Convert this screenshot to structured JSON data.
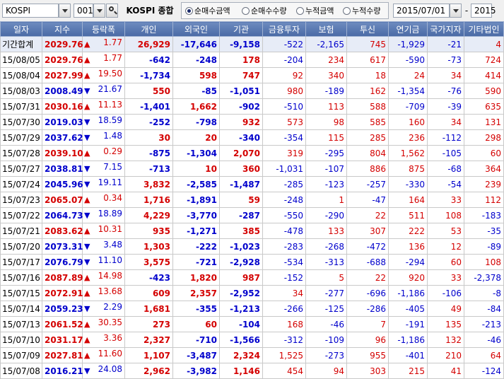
{
  "toolbar": {
    "market": "KOSPI",
    "code": "001",
    "title": "KOSPI 종합",
    "radios": [
      {
        "label": "순매수금액",
        "selected": true
      },
      {
        "label": "순매수수량",
        "selected": false
      },
      {
        "label": "누적금액",
        "selected": false
      },
      {
        "label": "누적수량",
        "selected": false
      }
    ],
    "date_from": "2015/07/01",
    "separator": "-",
    "date_to": "2015"
  },
  "columns": [
    "일자",
    "지수",
    "등락폭",
    "개인",
    "외국인",
    "기관",
    "금융투자",
    "보험",
    "투신",
    "연기금",
    "국가지자",
    "기타법인"
  ],
  "colors": {
    "up": "#d40000",
    "down": "#0000cc",
    "header": "#5a78b2"
  },
  "rows": [
    {
      "date": "기간합계",
      "index": "2029.76",
      "dir": "up",
      "change": "1.77",
      "individual": "26,929",
      "foreign": "-17,646",
      "institution": "-9,158",
      "financial": "-522",
      "insurance": "-2,165",
      "trust": "745",
      "pension": "-1,929",
      "government": "-21",
      "other": "4"
    },
    {
      "date": "15/08/05",
      "index": "2029.76",
      "dir": "up",
      "change": "1.77",
      "individual": "-642",
      "foreign": "-248",
      "institution": "178",
      "financial": "-204",
      "insurance": "234",
      "trust": "617",
      "pension": "-590",
      "government": "-73",
      "other": "724"
    },
    {
      "date": "15/08/04",
      "index": "2027.99",
      "dir": "up",
      "change": "19.50",
      "individual": "-1,734",
      "foreign": "598",
      "institution": "747",
      "financial": "92",
      "insurance": "340",
      "trust": "18",
      "pension": "24",
      "government": "34",
      "other": "414"
    },
    {
      "date": "15/08/03",
      "index": "2008.49",
      "dir": "down",
      "change": "21.67",
      "individual": "550",
      "foreign": "-85",
      "institution": "-1,051",
      "financial": "980",
      "insurance": "-189",
      "trust": "162",
      "pension": "-1,354",
      "government": "-76",
      "other": "590"
    },
    {
      "date": "15/07/31",
      "index": "2030.16",
      "dir": "up",
      "change": "11.13",
      "individual": "-1,401",
      "foreign": "1,662",
      "institution": "-902",
      "financial": "-510",
      "insurance": "113",
      "trust": "588",
      "pension": "-709",
      "government": "-39",
      "other": "635"
    },
    {
      "date": "15/07/30",
      "index": "2019.03",
      "dir": "down",
      "change": "18.59",
      "individual": "-252",
      "foreign": "-798",
      "institution": "932",
      "financial": "573",
      "insurance": "98",
      "trust": "585",
      "pension": "160",
      "government": "34",
      "other": "131"
    },
    {
      "date": "15/07/29",
      "index": "2037.62",
      "dir": "down",
      "change": "1.48",
      "individual": "30",
      "foreign": "20",
      "institution": "-340",
      "financial": "-354",
      "insurance": "115",
      "trust": "285",
      "pension": "236",
      "government": "-112",
      "other": "298"
    },
    {
      "date": "15/07/28",
      "index": "2039.10",
      "dir": "up",
      "change": "0.29",
      "individual": "-875",
      "foreign": "-1,304",
      "institution": "2,070",
      "financial": "319",
      "insurance": "-295",
      "trust": "804",
      "pension": "1,562",
      "government": "-105",
      "other": "60"
    },
    {
      "date": "15/07/27",
      "index": "2038.81",
      "dir": "down",
      "change": "7.15",
      "individual": "-713",
      "foreign": "10",
      "institution": "360",
      "financial": "-1,031",
      "insurance": "-107",
      "trust": "886",
      "pension": "875",
      "government": "-68",
      "other": "364"
    },
    {
      "date": "15/07/24",
      "index": "2045.96",
      "dir": "down",
      "change": "19.11",
      "individual": "3,832",
      "foreign": "-2,585",
      "institution": "-1,487",
      "financial": "-285",
      "insurance": "-123",
      "trust": "-257",
      "pension": "-330",
      "government": "-54",
      "other": "239"
    },
    {
      "date": "15/07/23",
      "index": "2065.07",
      "dir": "up",
      "change": "0.34",
      "individual": "1,716",
      "foreign": "-1,891",
      "institution": "59",
      "financial": "-248",
      "insurance": "1",
      "trust": "-47",
      "pension": "164",
      "government": "33",
      "other": "112"
    },
    {
      "date": "15/07/22",
      "index": "2064.73",
      "dir": "down",
      "change": "18.89",
      "individual": "4,229",
      "foreign": "-3,770",
      "institution": "-287",
      "financial": "-550",
      "insurance": "-290",
      "trust": "22",
      "pension": "511",
      "government": "108",
      "other": "-183"
    },
    {
      "date": "15/07/21",
      "index": "2083.62",
      "dir": "up",
      "change": "10.31",
      "individual": "935",
      "foreign": "-1,271",
      "institution": "385",
      "financial": "-478",
      "insurance": "133",
      "trust": "307",
      "pension": "222",
      "government": "53",
      "other": "-35"
    },
    {
      "date": "15/07/20",
      "index": "2073.31",
      "dir": "down",
      "change": "3.48",
      "individual": "1,303",
      "foreign": "-222",
      "institution": "-1,023",
      "financial": "-283",
      "insurance": "-268",
      "trust": "-472",
      "pension": "136",
      "government": "12",
      "other": "-89"
    },
    {
      "date": "15/07/17",
      "index": "2076.79",
      "dir": "down",
      "change": "11.10",
      "individual": "3,575",
      "foreign": "-721",
      "institution": "-2,928",
      "financial": "-534",
      "insurance": "-313",
      "trust": "-688",
      "pension": "-294",
      "government": "60",
      "other": "108"
    },
    {
      "date": "15/07/16",
      "index": "2087.89",
      "dir": "up",
      "change": "14.98",
      "individual": "-423",
      "foreign": "1,820",
      "institution": "987",
      "financial": "-152",
      "insurance": "5",
      "trust": "22",
      "pension": "920",
      "government": "33",
      "other": "-2,378"
    },
    {
      "date": "15/07/15",
      "index": "2072.91",
      "dir": "up",
      "change": "13.68",
      "individual": "609",
      "foreign": "2,357",
      "institution": "-2,952",
      "financial": "34",
      "insurance": "-277",
      "trust": "-696",
      "pension": "-1,186",
      "government": "-106",
      "other": "-8"
    },
    {
      "date": "15/07/14",
      "index": "2059.23",
      "dir": "down",
      "change": "2.29",
      "individual": "1,681",
      "foreign": "-355",
      "institution": "-1,213",
      "financial": "-266",
      "insurance": "-125",
      "trust": "-286",
      "pension": "-405",
      "government": "49",
      "other": "-84"
    },
    {
      "date": "15/07/13",
      "index": "2061.52",
      "dir": "up",
      "change": "30.35",
      "individual": "273",
      "foreign": "60",
      "institution": "-104",
      "financial": "168",
      "insurance": "-46",
      "trust": "7",
      "pension": "-191",
      "government": "135",
      "other": "-213"
    },
    {
      "date": "15/07/10",
      "index": "2031.17",
      "dir": "up",
      "change": "3.36",
      "individual": "2,327",
      "foreign": "-710",
      "institution": "-1,566",
      "financial": "-312",
      "insurance": "-109",
      "trust": "96",
      "pension": "-1,186",
      "government": "132",
      "other": "-46"
    },
    {
      "date": "15/07/09",
      "index": "2027.81",
      "dir": "up",
      "change": "11.60",
      "individual": "1,107",
      "foreign": "-3,487",
      "institution": "2,324",
      "financial": "1,525",
      "insurance": "-273",
      "trust": "955",
      "pension": "-401",
      "government": "210",
      "other": "64"
    },
    {
      "date": "15/07/08",
      "index": "2016.21",
      "dir": "down",
      "change": "24.08",
      "individual": "2,962",
      "foreign": "-3,982",
      "institution": "1,146",
      "financial": "454",
      "insurance": "94",
      "trust": "303",
      "pension": "215",
      "government": "41",
      "other": "-124"
    }
  ]
}
